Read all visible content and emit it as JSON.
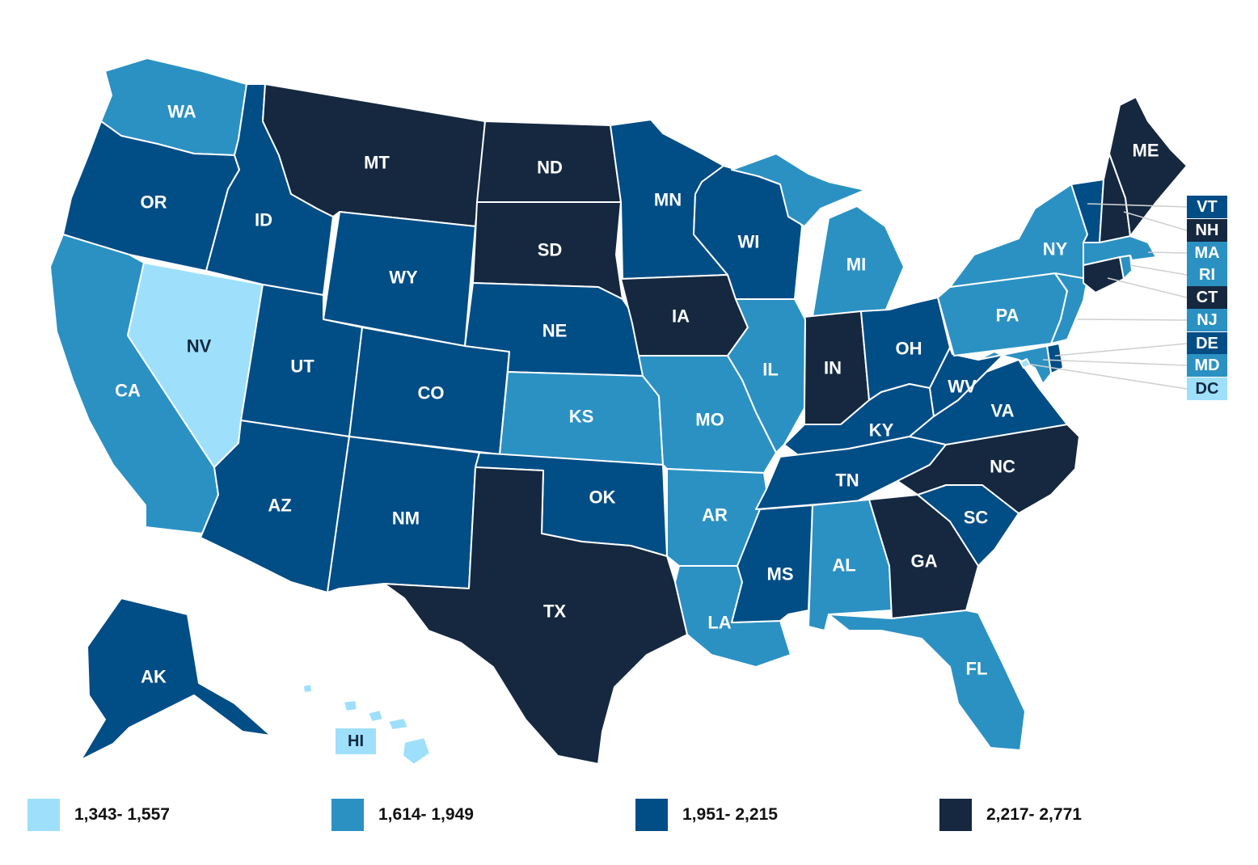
{
  "colors": {
    "c1": "#9ee0fb",
    "c2": "#2b91c3",
    "c3": "#014d86",
    "c4": "#152840",
    "border": "#ffffff"
  },
  "legend": [
    {
      "label": "1,343- 1,557",
      "color": "#9ee0fb"
    },
    {
      "label": "1,614- 1,949",
      "color": "#2b91c3"
    },
    {
      "label": "1,951- 2,215",
      "color": "#014d86"
    },
    {
      "label": "2,217- 2,771",
      "color": "#152840"
    }
  ],
  "states": {
    "WA": {
      "label": "WA",
      "color": "#2b91c3"
    },
    "OR": {
      "label": "OR",
      "color": "#014d86"
    },
    "CA": {
      "label": "CA",
      "color": "#2b91c3"
    },
    "NV": {
      "label": "NV",
      "color": "#9ee0fb"
    },
    "ID": {
      "label": "ID",
      "color": "#014d86"
    },
    "MT": {
      "label": "MT",
      "color": "#152840"
    },
    "WY": {
      "label": "WY",
      "color": "#014d86"
    },
    "UT": {
      "label": "UT",
      "color": "#014d86"
    },
    "AZ": {
      "label": "AZ",
      "color": "#014d86"
    },
    "CO": {
      "label": "CO",
      "color": "#014d86"
    },
    "NM": {
      "label": "NM",
      "color": "#014d86"
    },
    "ND": {
      "label": "ND",
      "color": "#152840"
    },
    "SD": {
      "label": "SD",
      "color": "#152840"
    },
    "NE": {
      "label": "NE",
      "color": "#014d86"
    },
    "KS": {
      "label": "KS",
      "color": "#2b91c3"
    },
    "OK": {
      "label": "OK",
      "color": "#014d86"
    },
    "TX": {
      "label": "TX",
      "color": "#152840"
    },
    "MN": {
      "label": "MN",
      "color": "#014d86"
    },
    "IA": {
      "label": "IA",
      "color": "#152840"
    },
    "MO": {
      "label": "MO",
      "color": "#2b91c3"
    },
    "AR": {
      "label": "AR",
      "color": "#2b91c3"
    },
    "LA": {
      "label": "LA",
      "color": "#2b91c3"
    },
    "WI": {
      "label": "WI",
      "color": "#014d86"
    },
    "IL": {
      "label": "IL",
      "color": "#2b91c3"
    },
    "MI": {
      "label": "MI",
      "color": "#2b91c3"
    },
    "IN": {
      "label": "IN",
      "color": "#152840"
    },
    "OH": {
      "label": "OH",
      "color": "#014d86"
    },
    "KY": {
      "label": "KY",
      "color": "#014d86"
    },
    "TN": {
      "label": "TN",
      "color": "#014d86"
    },
    "MS": {
      "label": "MS",
      "color": "#014d86"
    },
    "AL": {
      "label": "AL",
      "color": "#2b91c3"
    },
    "GA": {
      "label": "GA",
      "color": "#152840"
    },
    "FL": {
      "label": "FL",
      "color": "#2b91c3"
    },
    "SC": {
      "label": "SC",
      "color": "#014d86"
    },
    "NC": {
      "label": "NC",
      "color": "#152840"
    },
    "VA": {
      "label": "VA",
      "color": "#014d86"
    },
    "WV": {
      "label": "WV",
      "color": "#014d86"
    },
    "PA": {
      "label": "PA",
      "color": "#2b91c3"
    },
    "NY": {
      "label": "NY",
      "color": "#2b91c3"
    },
    "ME": {
      "label": "ME",
      "color": "#152840"
    },
    "VT": {
      "label": "VT",
      "color": "#014d86"
    },
    "NH": {
      "label": "NH",
      "color": "#152840"
    },
    "MA": {
      "label": "MA",
      "color": "#2b91c3"
    },
    "RI": {
      "label": "RI",
      "color": "#2b91c3"
    },
    "CT": {
      "label": "CT",
      "color": "#152840"
    },
    "NJ": {
      "label": "NJ",
      "color": "#2b91c3"
    },
    "DE": {
      "label": "DE",
      "color": "#014d86"
    },
    "MD": {
      "label": "MD",
      "color": "#2b91c3"
    },
    "DC": {
      "label": "DC",
      "color": "#9ee0fb"
    },
    "AK": {
      "label": "AK",
      "color": "#014d86"
    },
    "HI": {
      "label": "HI",
      "color": "#9ee0fb"
    }
  }
}
